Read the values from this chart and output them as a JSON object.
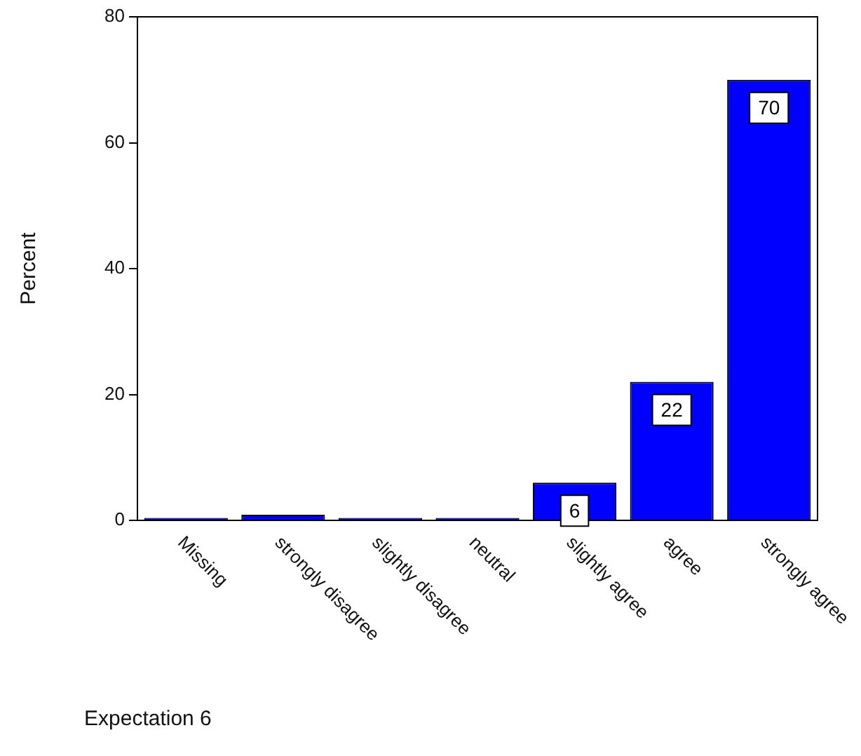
{
  "chart_data": {
    "type": "bar",
    "ylabel": "Percent",
    "categories": [
      "Missing",
      "strongly disagree",
      "slightly disagree",
      "neutral",
      "slightly agree",
      "agree",
      "strongly agree"
    ],
    "values": [
      0.4,
      0.9,
      0.4,
      0.4,
      6,
      22,
      70
    ],
    "value_labels": [
      null,
      null,
      null,
      null,
      "6",
      "22",
      "70"
    ],
    "color": "#0000ff",
    "ylim": [
      0,
      80
    ],
    "yticks": [
      0,
      20,
      40,
      60,
      80
    ],
    "grid": false,
    "legend": false,
    "annotations": [
      "Expectation 6"
    ]
  }
}
